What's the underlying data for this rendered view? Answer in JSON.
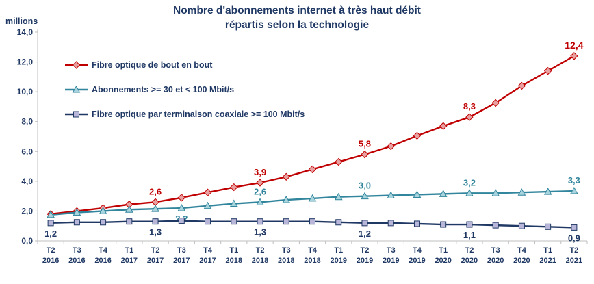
{
  "chart_data": {
    "type": "line",
    "title_lines": [
      "Nombre d'abonnements internet à très haut débit",
      "répartis selon la technologie"
    ],
    "ylabel": "millions",
    "xlabel": "",
    "ylim": [
      0,
      14
    ],
    "ytick_step": 2,
    "ytick_labels": [
      "0,0",
      "2,0",
      "4,0",
      "6,0",
      "8,0",
      "10,0",
      "12,0",
      "14,0"
    ],
    "grid": false,
    "legend_position": "inside-top-left",
    "colors": {
      "title": "#1f3864",
      "axis": "#bfbfbf",
      "text": "#1f3864"
    },
    "categories": [
      [
        "T2",
        "2016"
      ],
      [
        "T3",
        "2016"
      ],
      [
        "T4",
        "2016"
      ],
      [
        "T1",
        "2017"
      ],
      [
        "T2",
        "2017"
      ],
      [
        "T3",
        "2017"
      ],
      [
        "T4",
        "2017"
      ],
      [
        "T1",
        "2018"
      ],
      [
        "T2",
        "2018"
      ],
      [
        "T3",
        "2018"
      ],
      [
        "T4",
        "2018"
      ],
      [
        "T1",
        "2019"
      ],
      [
        "T2",
        "2019"
      ],
      [
        "T3",
        "2019"
      ],
      [
        "T4",
        "2019"
      ],
      [
        "T1",
        "2020"
      ],
      [
        "T2",
        "2020"
      ],
      [
        "T3",
        "2020"
      ],
      [
        "T4",
        "2020"
      ],
      [
        "T1",
        "2021"
      ],
      [
        "T2",
        "2021"
      ]
    ],
    "series": [
      {
        "name": "Fibre optique de bout en bout",
        "line_color": "#c00000",
        "label_color": "#c00000",
        "marker": "diamond",
        "marker_fill": "#e8a0a0",
        "values": [
          1.8,
          2.0,
          2.2,
          2.45,
          2.6,
          2.9,
          3.25,
          3.6,
          3.9,
          4.3,
          4.8,
          5.3,
          5.8,
          6.35,
          7.05,
          7.7,
          8.3,
          9.25,
          10.4,
          11.4,
          12.4
        ],
        "labels": [
          {
            "index": 4,
            "text": "2,6",
            "position": "above"
          },
          {
            "index": 8,
            "text": "3,9",
            "position": "above"
          },
          {
            "index": 12,
            "text": "5,8",
            "position": "above"
          },
          {
            "index": 16,
            "text": "8,3",
            "position": "above"
          },
          {
            "index": 20,
            "text": "12,4",
            "position": "above",
            "big": true
          }
        ]
      },
      {
        "name": "Abonnements >= 30 et < 100 Mbit/s",
        "line_color": "#31859c",
        "label_color": "#31859c",
        "marker": "triangle",
        "marker_fill": "#a8d4de",
        "values": [
          1.75,
          1.9,
          2.0,
          2.1,
          2.15,
          2.2,
          2.35,
          2.5,
          2.6,
          2.75,
          2.85,
          2.95,
          3.0,
          3.05,
          3.1,
          3.15,
          3.2,
          3.2,
          3.25,
          3.3,
          3.35
        ],
        "labels": [
          {
            "index": 5,
            "text": "2,2",
            "position": "below"
          },
          {
            "index": 8,
            "text": "2,6",
            "position": "above"
          },
          {
            "index": 12,
            "text": "3,0",
            "position": "above"
          },
          {
            "index": 16,
            "text": "3,2",
            "position": "above"
          },
          {
            "index": 20,
            "text": "3,3",
            "position": "above"
          }
        ]
      },
      {
        "name": "Fibre optique par terminaison coaxiale >= 100 Mbit/s",
        "line_color": "#1f3864",
        "label_color": "#1f3864",
        "marker": "square",
        "marker_fill": "#b9b7d9",
        "values": [
          1.2,
          1.25,
          1.25,
          1.3,
          1.3,
          1.35,
          1.3,
          1.3,
          1.3,
          1.3,
          1.3,
          1.25,
          1.2,
          1.2,
          1.15,
          1.1,
          1.1,
          1.05,
          1.0,
          0.95,
          0.9
        ],
        "labels": [
          {
            "index": 0,
            "text": "1,2",
            "position": "below"
          },
          {
            "index": 4,
            "text": "1,3",
            "position": "below"
          },
          {
            "index": 8,
            "text": "1,3",
            "position": "below"
          },
          {
            "index": 12,
            "text": "1,2",
            "position": "below"
          },
          {
            "index": 16,
            "text": "1,1",
            "position": "below"
          },
          {
            "index": 20,
            "text": "0,9",
            "position": "below"
          }
        ]
      }
    ]
  }
}
